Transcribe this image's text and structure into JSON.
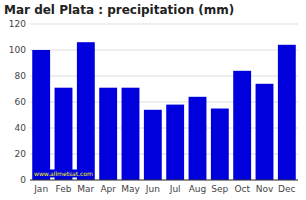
{
  "chart_data": {
    "type": "bar",
    "title": "Mar del Plata : precipitation (mm)",
    "categories": [
      "Jan",
      "Feb",
      "Mar",
      "Apr",
      "May",
      "Jun",
      "Jul",
      "Aug",
      "Sep",
      "Oct",
      "Nov",
      "Dec"
    ],
    "values": [
      100,
      71,
      106,
      71,
      71,
      54,
      58,
      64,
      55,
      84,
      74,
      104
    ],
    "color": "#0000dd",
    "ylim": [
      0,
      120
    ],
    "yticks": [
      0,
      20,
      40,
      60,
      80,
      100,
      120
    ],
    "grid": true,
    "annotations": [
      "www.allmetsat.com"
    ]
  }
}
